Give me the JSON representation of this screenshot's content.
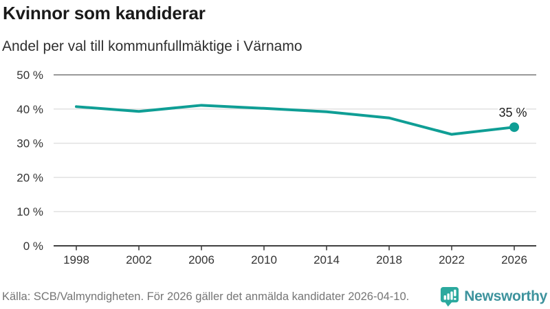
{
  "header": {
    "title": "Kvinnor som kandiderar",
    "subtitle": "Andel per val till kommunfullmäktige i Värnamo"
  },
  "chart_data": {
    "type": "line",
    "title": "Kvinnor som kandiderar",
    "subtitle": "Andel per val till kommunfullmäktige i Värnamo",
    "categories": [
      "1998",
      "2002",
      "2006",
      "2010",
      "2014",
      "2018",
      "2022",
      "2026"
    ],
    "values": [
      40.7,
      39.3,
      41.1,
      40.2,
      39.2,
      37.4,
      32.6,
      34.7
    ],
    "series_name": "Andel kvinnor som kandiderar",
    "xlabel": "",
    "ylabel": "",
    "ylim": [
      0,
      50
    ],
    "y_tick_values": [
      0,
      10,
      20,
      30,
      40,
      50
    ],
    "y_tick_labels": [
      "0 %",
      "10 %",
      "20 %",
      "30 %",
      "40 %",
      "50 %"
    ],
    "grid": "horizontal",
    "legend_position": "none",
    "last_point_label": "35 %",
    "colors": {
      "line": "#0f9e95",
      "marker": "#0f9e95",
      "gridline": "#e0e0e0",
      "top_gridline": "#8a8a8a",
      "axis": "#3f3f3f",
      "tick_text": "#333333",
      "annotation_text": "#1a1a1a"
    }
  },
  "footer": {
    "source": "Källa: SCB/Valmyndigheten. För 2026 gäller det anmälda kandidater 2026-04-10.",
    "brand": "Newsworthy",
    "brand_text_color": "#3d939d",
    "logo_color": "#2ba99e"
  }
}
